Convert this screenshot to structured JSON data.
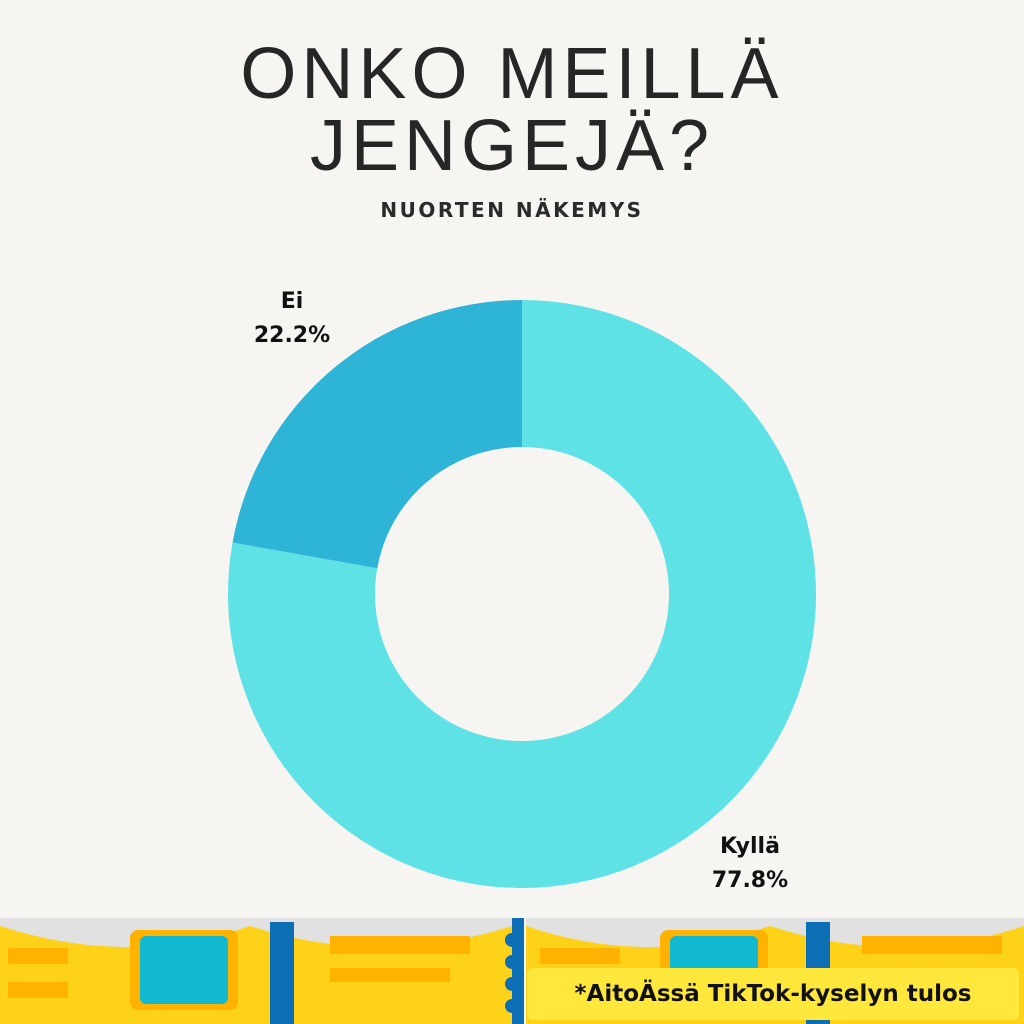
{
  "header": {
    "title_line1": "ONKO MEILLÄ",
    "title_line2": "JENGEJÄ?",
    "subtitle": "NUORTEN NÄKEMYS"
  },
  "colors": {
    "background": "#f6f5f2",
    "kylla": "#5ee2e6",
    "ei": "#2db4d6",
    "banner_yellow": "#ffd21a",
    "banner_orange": "#ffb300",
    "banner_teal": "#10b8d0",
    "banner_blue": "#0c6eb5",
    "caption_bg": "#ffe83b"
  },
  "chart_data": {
    "type": "pie",
    "donut": true,
    "start": "12 o'clock",
    "direction": "clockwise",
    "slices": [
      {
        "label": "Kyllä",
        "value": 77.8,
        "display": "77.8%"
      },
      {
        "label": "Ei",
        "value": 22.2,
        "display": "22.2%"
      }
    ]
  },
  "footer": {
    "caption": "*AitoÄssä TikTok-kyselyn tulos"
  }
}
